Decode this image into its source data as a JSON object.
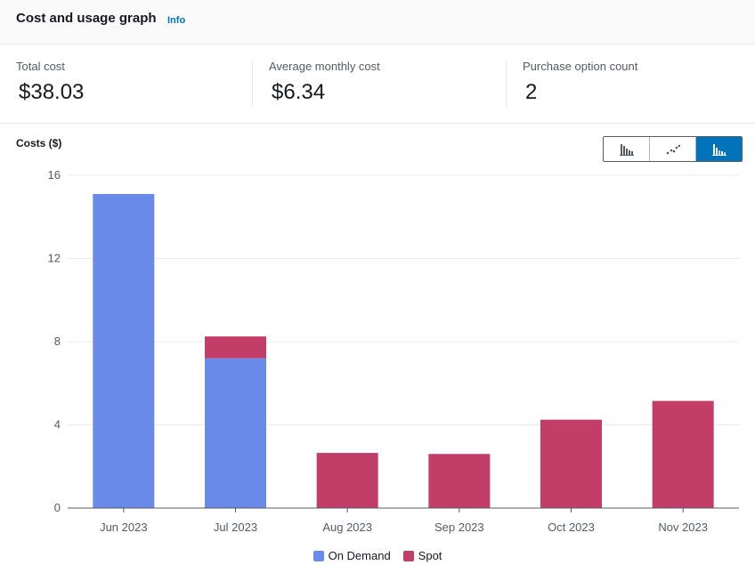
{
  "header": {
    "title": "Cost and usage graph",
    "info_label": "Info"
  },
  "metrics": [
    {
      "label": "Total cost",
      "value": "$38.03"
    },
    {
      "label": "Average monthly cost",
      "value": "$6.34"
    },
    {
      "label": "Purchase option count",
      "value": "2"
    }
  ],
  "chart_controls": {
    "options": [
      {
        "icon": "bar-chart-icon",
        "label": "Bar chart"
      },
      {
        "icon": "line-chart-icon",
        "label": "Line chart"
      },
      {
        "icon": "stacked-bar-chart-icon",
        "label": "Stacked bar chart"
      }
    ],
    "selected": 2
  },
  "colors": {
    "on_demand": "#688ae8",
    "spot": "#c33d69",
    "accent": "#0073bb"
  },
  "chart_data": {
    "type": "bar",
    "stacked": true,
    "title": "",
    "ylabel": "Costs ($)",
    "xlabel": "",
    "categories": [
      "Jun 2023",
      "Jul 2023",
      "Aug 2023",
      "Sep 2023",
      "Oct 2023",
      "Nov 2023"
    ],
    "ylim": [
      0,
      16
    ],
    "yticks": [
      0,
      4,
      8,
      12,
      16
    ],
    "grid": true,
    "legend_position": "bottom",
    "series": [
      {
        "name": "On Demand",
        "color": "#688ae8",
        "values": [
          15.1,
          7.2,
          0,
          0,
          0,
          0
        ]
      },
      {
        "name": "Spot",
        "color": "#c33d69",
        "values": [
          0,
          1.05,
          2.65,
          2.6,
          4.25,
          5.15
        ]
      }
    ]
  }
}
